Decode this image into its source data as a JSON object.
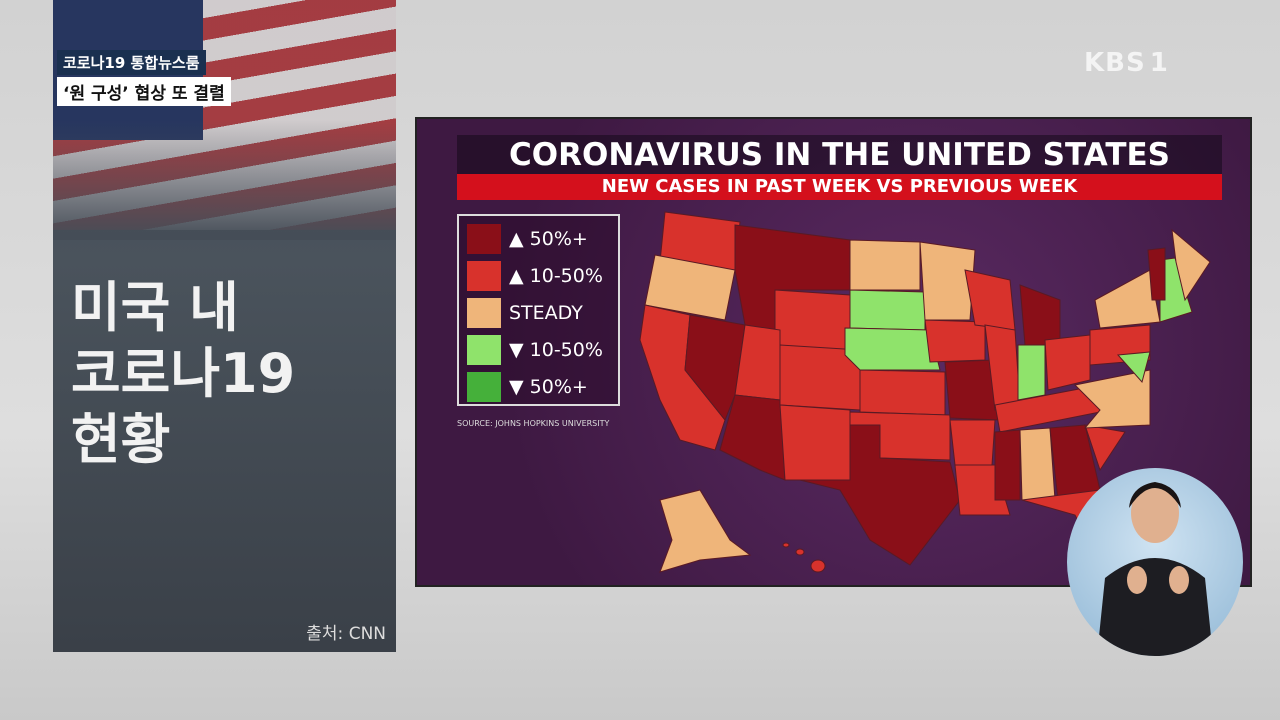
{
  "broadcast": {
    "tag": "코로나19 통합뉴스룸",
    "ticker": "‘원 구성’ 협상 또 결렬",
    "headline": [
      "미국 내",
      "코로나19",
      "현황"
    ],
    "source": "출처: CNN",
    "logo": "KBS",
    "channel": "1"
  },
  "map": {
    "title": "CORONAVIRUS IN THE UNITED STATES",
    "subtitle": "NEW CASES IN PAST WEEK VS PREVIOUS WEEK",
    "legend": [
      {
        "label": "▲ 50%+",
        "color": "#8a0f18"
      },
      {
        "label": "▲ 10-50%",
        "color": "#d8322c"
      },
      {
        "label": "STEADY",
        "color": "#efb57a"
      },
      {
        "label": "▼ 10-50%",
        "color": "#8fe36b"
      },
      {
        "label": "▼ 50%+",
        "color": "#45b03a"
      }
    ],
    "source": "SOURCE: JOHNS HOPKINS UNIVERSITY"
  }
}
